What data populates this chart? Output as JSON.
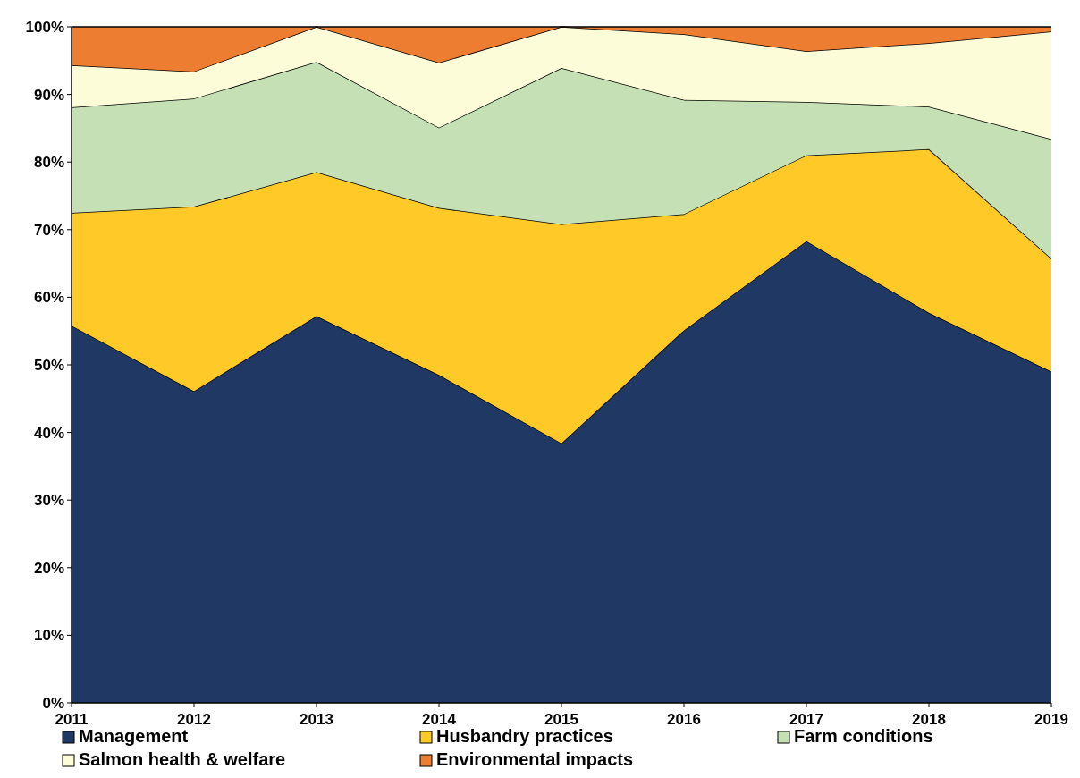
{
  "chart_data": {
    "type": "area",
    "stacked": true,
    "x": [
      2011,
      2012,
      2013,
      2014,
      2015,
      2016,
      2017,
      2018,
      2019
    ],
    "xlim": [
      2011,
      2019
    ],
    "xticks": [
      2011,
      2012,
      2013,
      2014,
      2015,
      2016,
      2017,
      2018,
      2019
    ],
    "ylim": [
      0,
      100
    ],
    "yticks": [
      {
        "value": 0,
        "label": "0%"
      },
      {
        "value": 10,
        "label": "10%"
      },
      {
        "value": 20,
        "label": "20%"
      },
      {
        "value": 30,
        "label": "30%"
      },
      {
        "value": 40,
        "label": "40%"
      },
      {
        "value": 50,
        "label": "50%"
      },
      {
        "value": 60,
        "label": "60%"
      },
      {
        "value": 70,
        "label": "70%"
      },
      {
        "value": 80,
        "label": "80%"
      },
      {
        "value": 90,
        "label": "90%"
      },
      {
        "value": 100,
        "label": "100%"
      }
    ],
    "grid": false,
    "legend": "bottom",
    "series": [
      {
        "name": "Management",
        "color": "#203864",
        "values": [
          55.8,
          46.1,
          57.2,
          48.5,
          38.4,
          55.1,
          68.3,
          57.7,
          49.0
        ]
      },
      {
        "name": "Husbandry practices",
        "color": "#ffca28",
        "values": [
          16.7,
          27.3,
          21.3,
          24.7,
          32.4,
          17.2,
          12.7,
          24.2,
          16.7
        ]
      },
      {
        "name": "Farm conditions",
        "color": "#c5e0b4",
        "values": [
          15.6,
          16.0,
          16.3,
          11.9,
          23.1,
          16.9,
          7.9,
          6.3,
          17.7
        ]
      },
      {
        "name": "Salmon health & welfare",
        "color": "#fdfcd8",
        "values": [
          6.2,
          4.0,
          5.2,
          9.6,
          6.1,
          9.7,
          7.5,
          9.4,
          15.9
        ]
      },
      {
        "name": "Environmental impacts",
        "color": "#ed7d31",
        "values": [
          5.7,
          6.6,
          0,
          5.3,
          0,
          1.1,
          3.6,
          2.4,
          0.7
        ]
      }
    ]
  }
}
